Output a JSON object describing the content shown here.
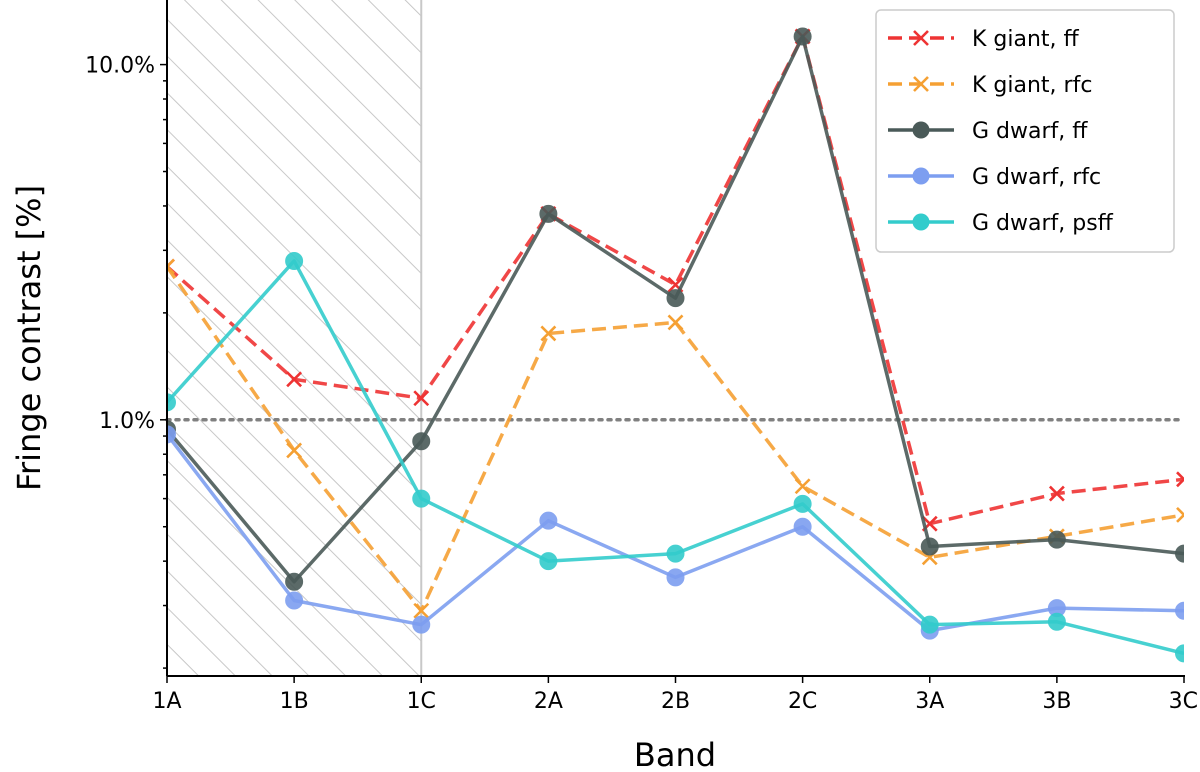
{
  "chart_data": {
    "type": "line",
    "xlabel": "Band",
    "ylabel": "Fringe contrast [%]",
    "yscale": "log",
    "ylim": [
      0.19,
      15.2
    ],
    "categories": [
      "1A",
      "1B",
      "1C",
      "2A",
      "2B",
      "2C",
      "3A",
      "3B",
      "3C"
    ],
    "yticks": [
      {
        "value": 1.0,
        "label": "1.0%"
      },
      {
        "value": 10.0,
        "label": "10.0%"
      }
    ],
    "reference_line": {
      "value": 1.0,
      "style": "dotted",
      "color": "#808080"
    },
    "shaded_region": {
      "from": "1A",
      "to": "1C",
      "pattern": "hatched"
    },
    "legend_position": "top-right",
    "series": [
      {
        "name": "K giant, ff",
        "color": "#ee3333",
        "line": "dashed",
        "marker": "x",
        "values": [
          2.7,
          1.3,
          1.15,
          3.8,
          2.4,
          12.0,
          0.51,
          0.62,
          0.68
        ]
      },
      {
        "name": "K giant, rfc",
        "color": "#f5a033",
        "line": "dashed",
        "marker": "x",
        "values": [
          2.7,
          0.82,
          0.29,
          1.75,
          1.88,
          0.65,
          0.41,
          0.47,
          0.54
        ]
      },
      {
        "name": "G dwarf, ff",
        "color": "#4a5a58",
        "line": "solid",
        "marker": "o",
        "values": [
          0.94,
          0.35,
          0.87,
          3.8,
          2.2,
          12.0,
          0.44,
          0.46,
          0.42
        ]
      },
      {
        "name": "G dwarf, rfc",
        "color": "#7d9ef0",
        "line": "solid",
        "marker": "o",
        "values": [
          0.91,
          0.31,
          0.265,
          0.52,
          0.36,
          0.5,
          0.255,
          0.295,
          0.29
        ]
      },
      {
        "name": "G dwarf, psff",
        "color": "#33cccc",
        "line": "solid",
        "marker": "o",
        "values": [
          1.12,
          2.8,
          0.6,
          0.4,
          0.42,
          0.58,
          0.265,
          0.27,
          0.22
        ]
      }
    ]
  }
}
